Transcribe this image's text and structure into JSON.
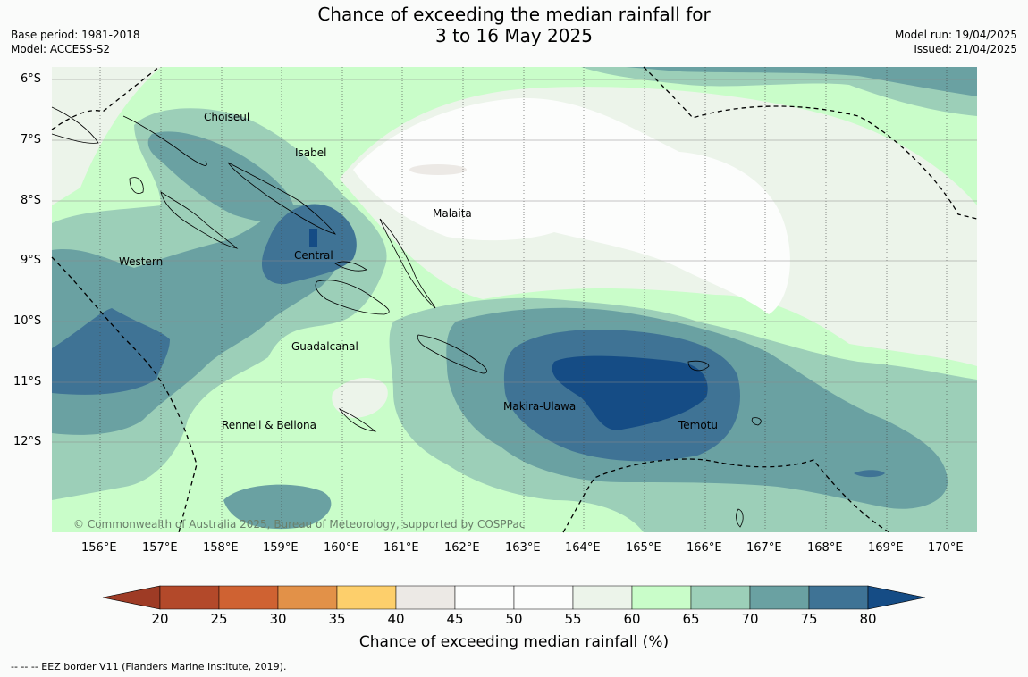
{
  "title_line1": "Chance of exceeding the median rainfall for",
  "title_line2": "3 to 16 May 2025",
  "base_period": "Base period: 1981-2018",
  "model": "Model: ACCESS-S2",
  "model_run": "Model run: 19/04/2025",
  "issued": "Issued: 21/04/2025",
  "copyright": "© Commonwealth of Australia 2025, Bureau of Meteorology, supported by COSPPac",
  "lat_ticks": [
    "6°S",
    "7°S",
    "8°S",
    "9°S",
    "10°S",
    "11°S",
    "12°S"
  ],
  "lon_ticks": [
    "156°E",
    "157°E",
    "158°E",
    "159°E",
    "160°E",
    "161°E",
    "162°E",
    "163°E",
    "164°E",
    "165°E",
    "166°E",
    "167°E",
    "168°E",
    "169°E",
    "170°E"
  ],
  "region_labels": [
    "Choiseul",
    "Isabel",
    "Malaita",
    "Western",
    "Central",
    "Guadalcanal",
    "Makira-Ulawa",
    "Rennell & Bellona",
    "Temotu"
  ],
  "colorbar": {
    "label": "Chance of exceeding median rainfall (%)",
    "ticks": [
      "20",
      "25",
      "30",
      "35",
      "40",
      "45",
      "50",
      "55",
      "60",
      "65",
      "70",
      "75",
      "80"
    ],
    "colors": [
      "#b3492a",
      "#cf6232",
      "#e29148",
      "#fdcf6b",
      "#ece9e5",
      "#fcfdfc",
      "#fcfdfc",
      "#ecf4ea",
      "#c9fdc9",
      "#9ccfb8",
      "#6aa1a2",
      "#3f7395"
    ],
    "under_color": "#9e3b25",
    "over_color": "#154c85"
  },
  "footer": "--  --  -- EEZ border V11 (Flanders Marine Institute, 2019)."
}
